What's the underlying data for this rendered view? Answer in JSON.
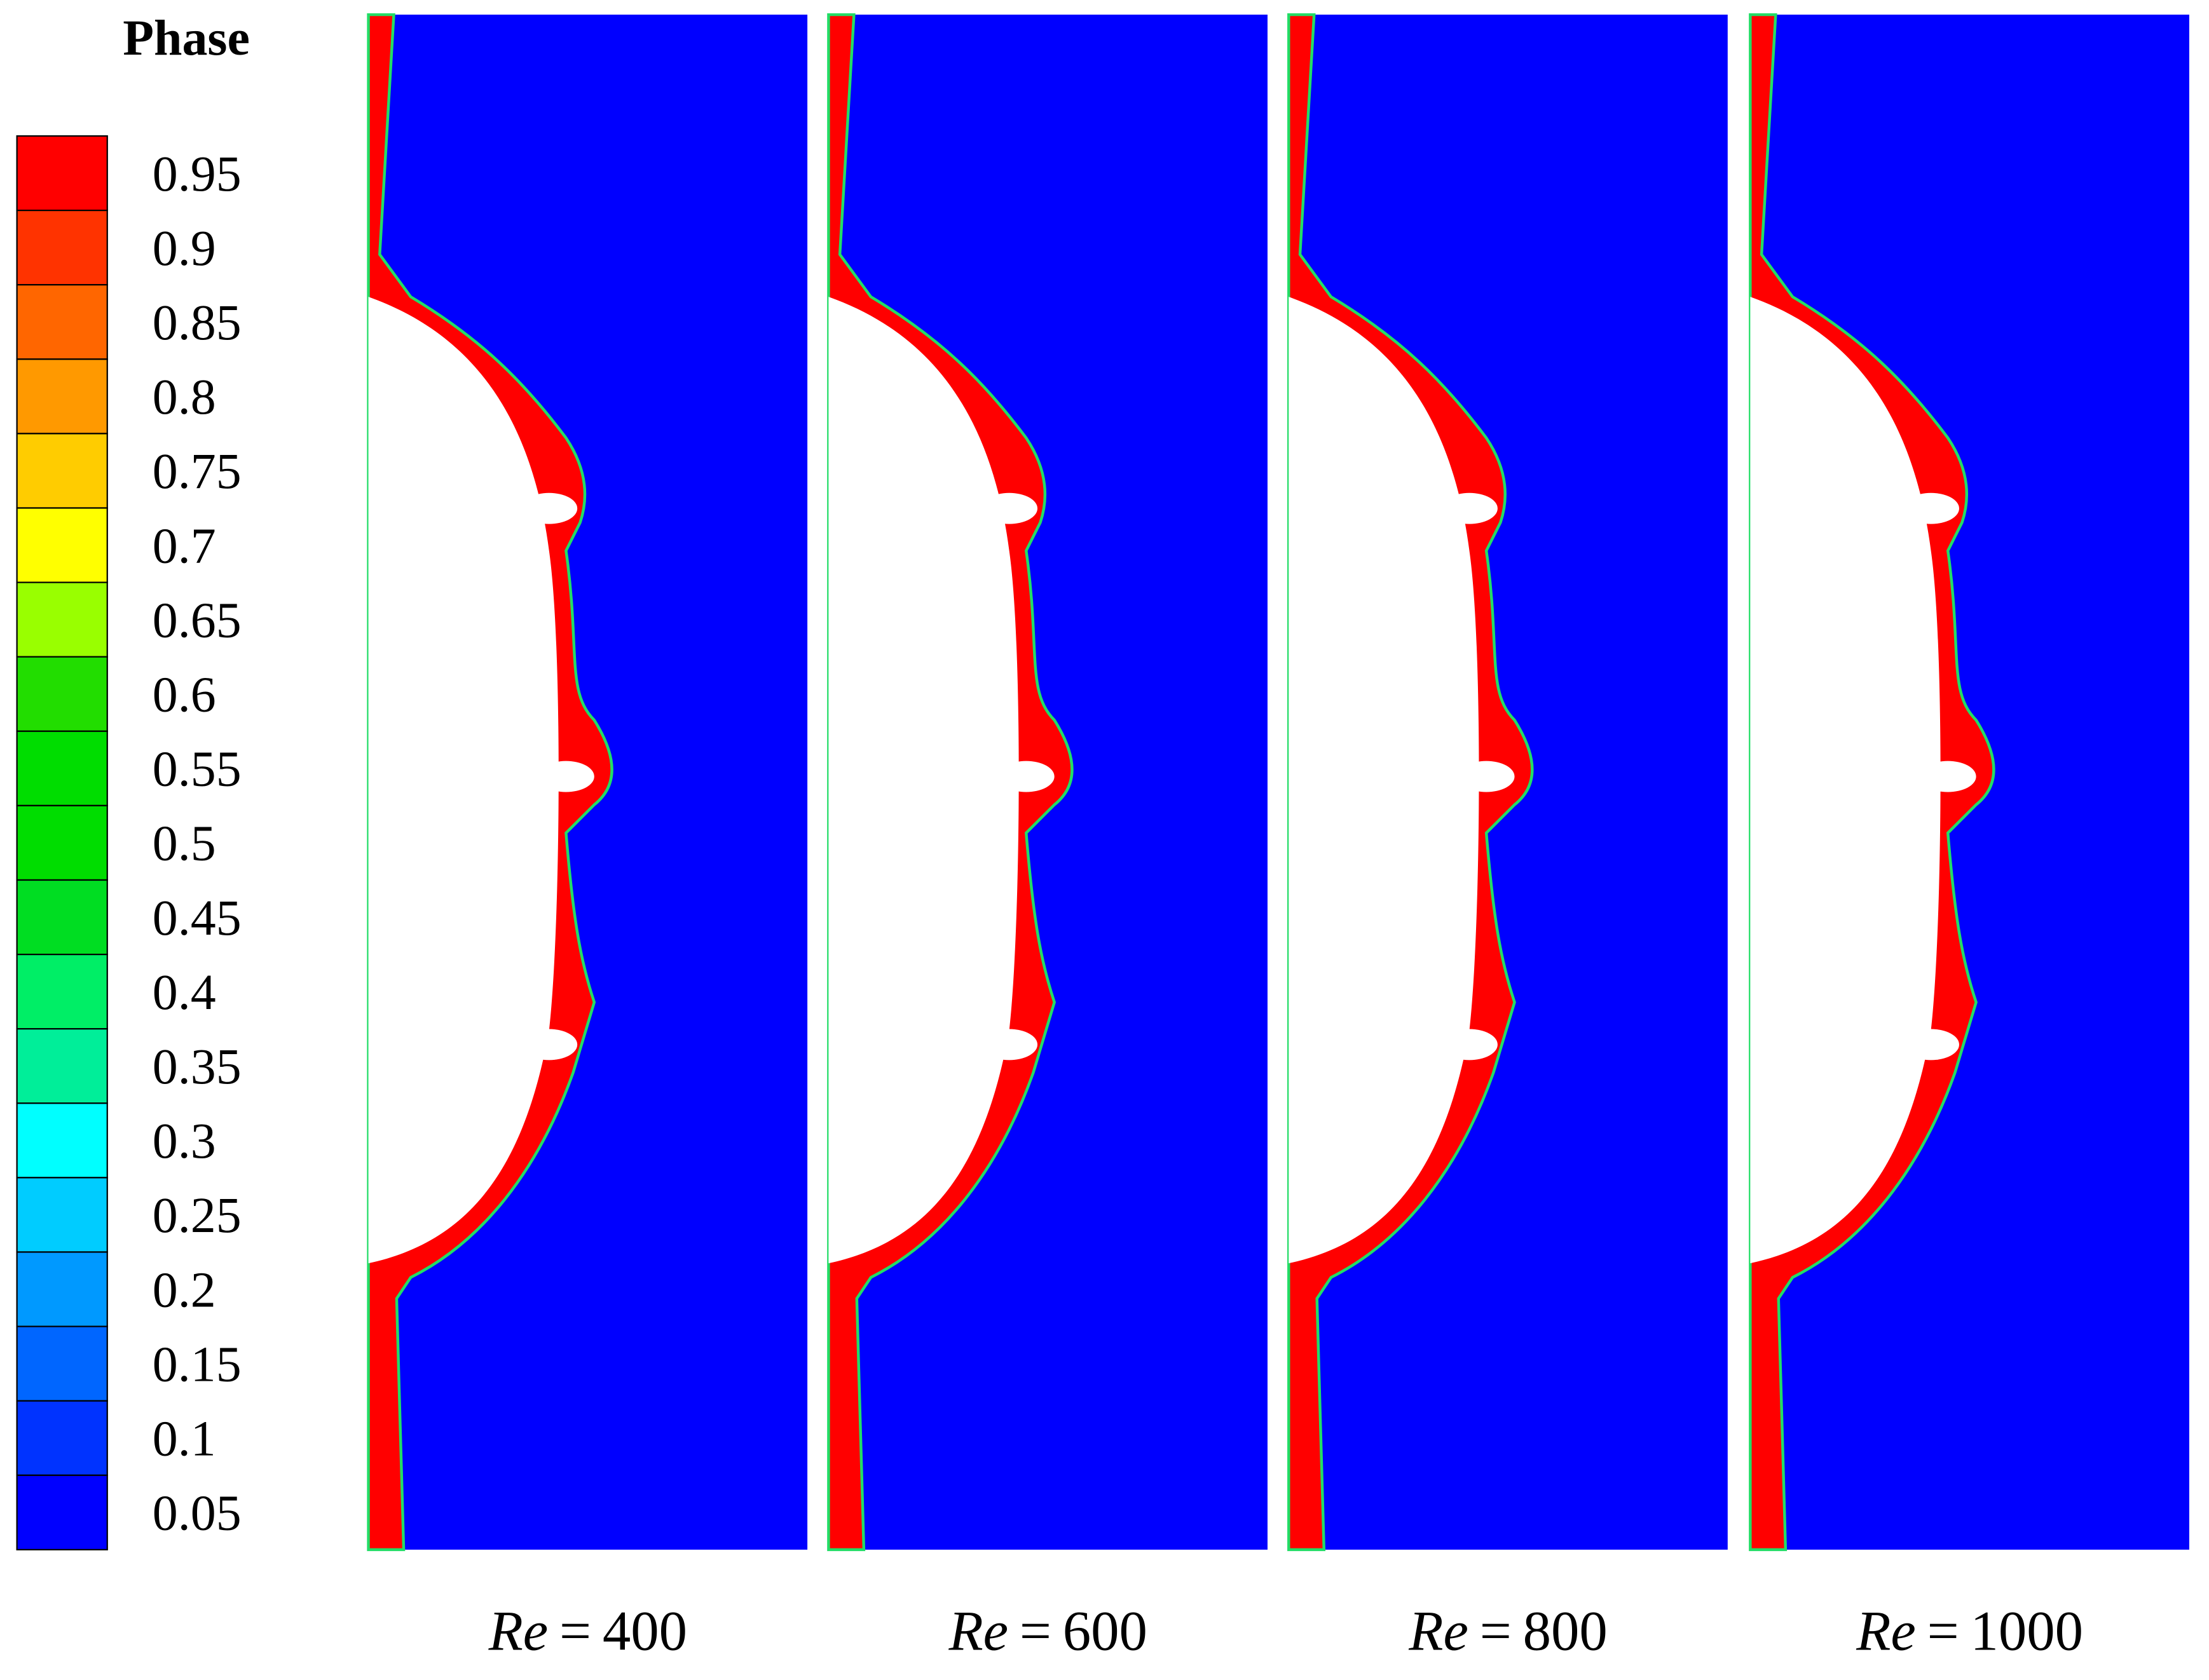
{
  "legend": {
    "title": "Phase",
    "levels": [
      0.95,
      0.9,
      0.85,
      0.8,
      0.75,
      0.7,
      0.65,
      0.6,
      0.55,
      0.5,
      0.45,
      0.4,
      0.35,
      0.3,
      0.25,
      0.2,
      0.15,
      0.1,
      0.05
    ],
    "colors": [
      "#ff0000",
      "#ff3300",
      "#ff6600",
      "#ff9900",
      "#ffcc00",
      "#ffff00",
      "#99ff00",
      "#22dd00",
      "#00dd00",
      "#00dd00",
      "#00dd22",
      "#00ee66",
      "#00ee99",
      "#00ffff",
      "#00ccff",
      "#0099ff",
      "#0066ff",
      "#0033ff",
      "#0000ff"
    ]
  },
  "panels": [
    {
      "symbol": "Re",
      "relation": "=",
      "value": 400
    },
    {
      "symbol": "Re",
      "relation": "=",
      "value": 600
    },
    {
      "symbol": "Re",
      "relation": "=",
      "value": 800
    },
    {
      "symbol": "Re",
      "relation": "=",
      "value": 1000
    }
  ]
}
